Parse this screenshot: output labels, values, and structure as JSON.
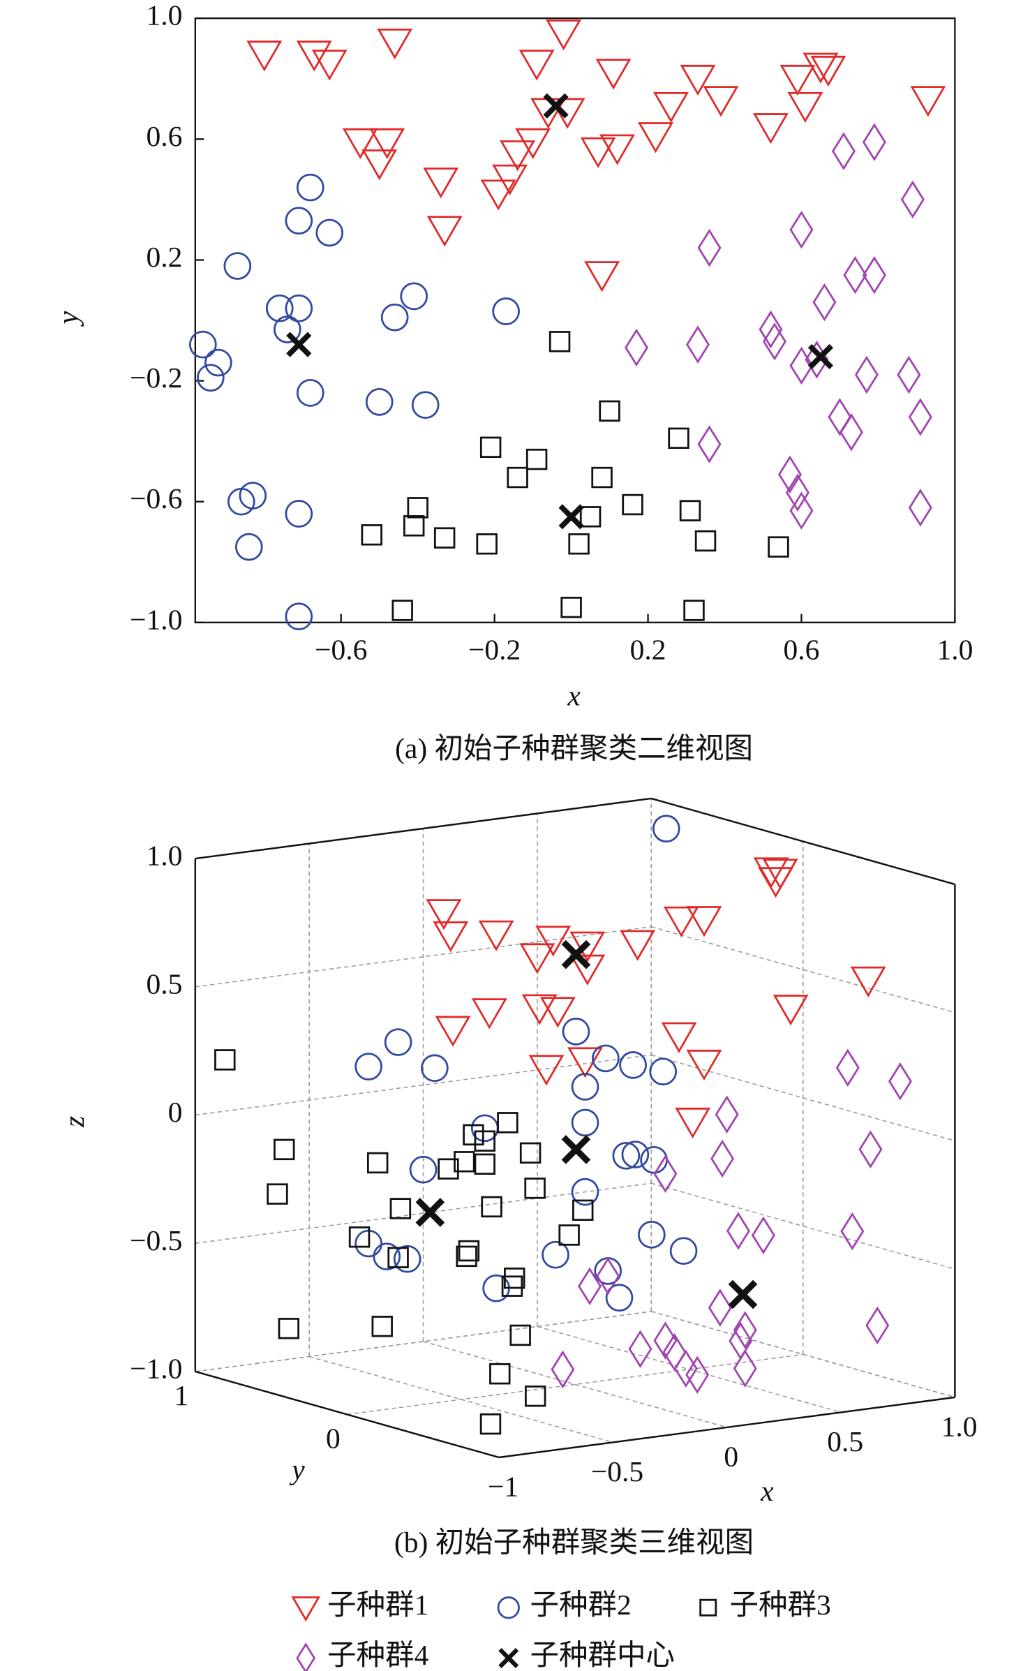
{
  "chart_data": [
    {
      "type": "scatter",
      "caption": "(a) 初始子种群聚类二维视图",
      "x_label": "x",
      "y_label": "y",
      "xlim": [
        -0.98,
        1.0
      ],
      "ylim": [
        -1.0,
        1.0
      ],
      "xticks": [
        {
          "value": -0.6,
          "label": "−0.6"
        },
        {
          "value": -0.2,
          "label": "−0.2"
        },
        0.2,
        0.6,
        {
          "value": 1.0,
          "label": "1.0"
        }
      ],
      "yticks": [
        {
          "value": -1.0,
          "label": "−1.0"
        },
        {
          "value": -0.6,
          "label": "−0.6"
        },
        {
          "value": -0.2,
          "label": "−0.2"
        },
        0.2,
        0.6,
        {
          "value": 1.0,
          "label": "1.0"
        }
      ],
      "grid": false,
      "series": [
        {
          "name": "子种群1",
          "color": "#e02a2a",
          "marker": "triangle",
          "x": [
            -0.8,
            -0.67,
            -0.63,
            -0.46,
            -0.09,
            -0.02,
            0.11,
            0.33,
            0.39,
            0.59,
            0.65,
            0.67,
            0.93,
            -0.06,
            -0.01,
            0.26,
            0.61,
            0.52,
            0.22,
            0.12,
            0.07,
            -0.1,
            -0.14,
            -0.16,
            -0.19,
            -0.34,
            -0.33,
            -0.55,
            -0.48,
            -0.5,
            0.08
          ],
          "y": [
            0.88,
            0.88,
            0.85,
            0.92,
            0.85,
            0.95,
            0.82,
            0.8,
            0.73,
            0.8,
            0.84,
            0.83,
            0.73,
            0.69,
            0.69,
            0.71,
            0.71,
            0.64,
            0.61,
            0.57,
            0.56,
            0.59,
            0.55,
            0.47,
            0.42,
            0.46,
            0.3,
            0.59,
            0.59,
            0.52,
            0.15
          ]
        },
        {
          "name": "子种群2",
          "color": "#3048a0",
          "marker": "circle",
          "x": [
            -0.68,
            -0.71,
            -0.63,
            -0.87,
            -0.41,
            -0.76,
            -0.71,
            -0.46,
            -0.17,
            -0.74,
            -0.96,
            -0.92,
            -0.94,
            -0.68,
            -0.5,
            -0.38,
            -0.83,
            -0.86,
            -0.71,
            -0.84,
            -0.71
          ],
          "y": [
            0.44,
            0.33,
            0.29,
            0.18,
            0.08,
            0.04,
            0.04,
            0.01,
            0.03,
            -0.03,
            -0.08,
            -0.14,
            -0.19,
            -0.24,
            -0.27,
            -0.28,
            -0.58,
            -0.6,
            -0.64,
            -0.75,
            -0.98
          ]
        },
        {
          "name": "子种群3",
          "color": "#111111",
          "marker": "square",
          "x": [
            -0.03,
            0.1,
            -0.21,
            0.28,
            -0.09,
            -0.14,
            0.08,
            0.16,
            -0.4,
            -0.41,
            -0.52,
            -0.33,
            -0.22,
            0.05,
            0.31,
            0.35,
            0.02,
            0.54,
            -0.44,
            0.0,
            0.32
          ],
          "y": [
            -0.07,
            -0.3,
            -0.42,
            -0.39,
            -0.46,
            -0.52,
            -0.52,
            -0.61,
            -0.62,
            -0.68,
            -0.71,
            -0.72,
            -0.74,
            -0.65,
            -0.63,
            -0.73,
            -0.74,
            -0.75,
            -0.96,
            -0.95,
            -0.96
          ]
        },
        {
          "name": "子种群4",
          "color": "#a044b0",
          "marker": "diamond",
          "x": [
            0.71,
            0.79,
            0.89,
            0.36,
            0.6,
            0.74,
            0.79,
            0.66,
            0.52,
            0.53,
            0.17,
            0.33,
            0.6,
            0.64,
            0.77,
            0.88,
            0.7,
            0.73,
            0.91,
            0.36,
            0.57,
            0.59,
            0.6,
            0.91
          ],
          "y": [
            0.56,
            0.59,
            0.4,
            0.24,
            0.3,
            0.15,
            0.15,
            0.06,
            -0.03,
            -0.07,
            -0.09,
            -0.08,
            -0.15,
            -0.13,
            -0.18,
            -0.18,
            -0.32,
            -0.37,
            -0.32,
            -0.41,
            -0.51,
            -0.57,
            -0.63,
            -0.62
          ]
        },
        {
          "name": "子种群中心",
          "color": "#111111",
          "marker": "cross",
          "x": [
            -0.04,
            -0.71,
            0.0,
            0.65
          ],
          "y": [
            0.71,
            -0.08,
            -0.65,
            -0.12
          ]
        }
      ]
    },
    {
      "type": "scatter3d",
      "caption": "(b) 初始子种群聚类三维视图",
      "x_label": "x",
      "y_label": "y",
      "z_label": "z",
      "xlim": [
        -1,
        1
      ],
      "ylim": [
        -1,
        1
      ],
      "zlim": [
        -1,
        1
      ],
      "xticks": [
        {
          "value": -1,
          "label": "−1"
        },
        {
          "value": -0.5,
          "label": "−0.5"
        },
        0,
        0.5,
        {
          "value": 1.0,
          "label": "1.0"
        }
      ],
      "yticks": [
        0,
        1
      ],
      "zticks": [
        {
          "value": -1.0,
          "label": "−1.0"
        },
        {
          "value": -0.5,
          "label": "−0.5"
        },
        0,
        0.5,
        {
          "value": 1.0,
          "label": "1.0"
        }
      ],
      "grid": true,
      "series": [
        {
          "color": "#e02a2a",
          "marker": "triangle",
          "x": [
            0.09,
            0.12,
            0.32,
            0.57,
            0.72,
            0.94,
            -0.2,
            -0.1,
            0.86,
            0.9,
            0.88,
            0.62,
            0.28,
            0.13,
            0.29,
            0.51,
            0.59,
            -0.21,
            -0.1,
            0.54,
            0.71,
            -0.15,
            0.72,
            0.5
          ],
          "y": [
            1,
            1,
            1,
            1,
            1,
            1,
            -1,
            -1,
            0,
            0,
            0,
            -1,
            -1,
            1,
            1,
            1,
            1,
            -1,
            -1,
            1,
            1,
            -1,
            1,
            1
          ],
          "z": [
            0.66,
            0.57,
            0.55,
            0.5,
            0.46,
            0.44,
            1.0,
            0.99,
            0.9,
            0.89,
            0.86,
            0.67,
            0.6,
            0.2,
            0.25,
            0.24,
            0.22,
            0.55,
            0.43,
            0.0,
            0.01,
            0.21,
            0.37,
            0.44
          ]
        },
        {
          "color": "#3048a0",
          "marker": "circle",
          "x": [
            0.4,
            -0.11,
            -0.24,
            0.05,
            0.67,
            0.8,
            0.92,
            -0.28,
            0.71,
            0.71,
            0.27,
            0.89,
            0.93,
            -0.32,
            0.0,
            0.71,
            -0.33,
            -0.19,
            0.58,
            0.81,
            0.86,
            0.32,
            -0.16,
            -0.07,
            -0.24
          ],
          "y": [
            0,
            1,
            1,
            1,
            1,
            1,
            1,
            -1,
            1,
            1,
            1,
            1,
            1,
            -1,
            1,
            1,
            -1,
            -1,
            1,
            1,
            1,
            1,
            1,
            1,
            1
          ],
          "z": [
            1.12,
            0.18,
            0.1,
            0.06,
            0.13,
            0.01,
            -0.03,
            0.42,
            -0.09,
            -0.23,
            -0.2,
            -0.38,
            -0.38,
            0.08,
            -0.33,
            -0.5,
            -0.21,
            -0.29,
            -0.73,
            -0.82,
            -0.93,
            -0.83,
            -0.65,
            -0.67,
            -0.59
          ]
        },
        {
          "color": "#111111",
          "marker": "square",
          "x": [
            -0.87,
            -0.61,
            -0.64,
            -0.2,
            0.22,
            0.37,
            0.27,
            0.47,
            0.11,
            0.18,
            0.27,
            0.49,
            -0.1,
            0.3,
            0.7,
            -0.28,
            0.64,
            0.2,
            0.19,
            -0.11,
            0.4,
            0.39,
            -0.59,
            -0.18,
            -0.24,
            -0.33,
            -0.84,
            -0.97
          ],
          "y": [
            1,
            1,
            1,
            1,
            1,
            1,
            1,
            1,
            1,
            1,
            1,
            1,
            1,
            1,
            1,
            1,
            1,
            1,
            1,
            1,
            1,
            1,
            1,
            1,
            0,
            0,
            -1,
            -0.9
          ],
          "z": [
            0.2,
            -0.18,
            -0.35,
            -0.28,
            -0.22,
            -0.19,
            -0.25,
            -0.32,
            -0.34,
            -0.32,
            -0.34,
            -0.46,
            -0.47,
            -0.51,
            -0.57,
            -0.56,
            -0.66,
            -0.67,
            -0.69,
            -0.66,
            -0.8,
            -0.83,
            -0.88,
            -0.92,
            -0.78,
            -0.92,
            -0.78,
            -0.89
          ]
        },
        {
          "color": "#a044b0",
          "marker": "diamond",
          "x": [
            -0.27,
            0.0,
            -0.02,
            0.53,
            0.76,
            0.63,
            0.55,
            0.05,
            0.16,
            0.81,
            0.73,
            -0.03,
            0.08,
            0.06,
            -0.38,
            -0.27,
            -0.23,
            -0.18,
            -0.13,
            0.08,
            -0.72,
            0.66
          ],
          "y": [
            -1,
            -1,
            -1,
            -1,
            -1,
            -1,
            -1,
            -1,
            -1,
            1,
            1,
            -1,
            -1,
            -1,
            -1,
            -1,
            -1,
            -1,
            -1,
            -1,
            -1,
            -1
          ],
          "z": [
            0.02,
            0.22,
            0.05,
            0.34,
            0.26,
            0.01,
            -0.3,
            -0.24,
            -0.27,
            -0.84,
            -0.87,
            -0.53,
            -0.63,
            -0.67,
            -0.65,
            -0.63,
            -0.68,
            -0.75,
            -0.78,
            -0.78,
            -0.69,
            -0.68
          ]
        },
        {
          "color": "#111111",
          "marker": "cross",
          "x": [
            0.67,
            0.67,
            0.03,
            0.07
          ],
          "y": [
            1,
            1,
            1,
            -1
          ],
          "z": [
            0.43,
            -0.33,
            -0.5,
            -0.49
          ]
        }
      ]
    }
  ]
}
